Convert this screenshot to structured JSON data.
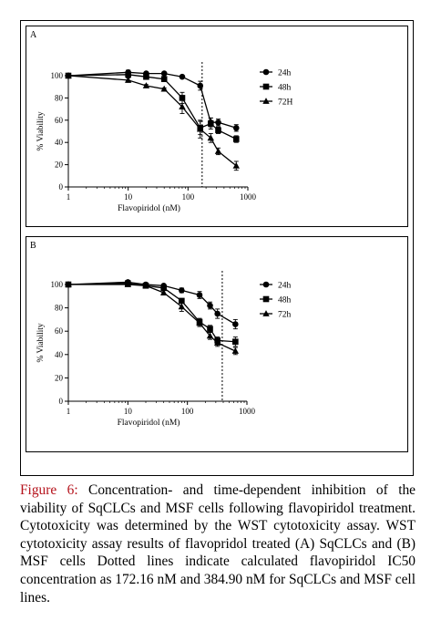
{
  "caption": {
    "label": "Figure 6:",
    "text": " Concentration- and time-dependent inhibition of the viability of SqCLCs and MSF cells following flavopiridol treatment. Cytotoxicity was determined by the WST cytotoxicity assay. WST cytotoxicity assay results of flavopridol treated (A) SqCLCs and (B) MSF cells Dotted lines indicate calculated flavopiridol IC50 concentration as 172.16 nM and 384.90 nM for SqCLCs and MSF cell lines."
  },
  "chart_data": [
    {
      "type": "line",
      "panel_label": "A",
      "xlabel": "Flavopiridol (nM)",
      "ylabel": "% Viability",
      "xscale": "log",
      "xlim": [
        1,
        1000
      ],
      "ylim": [
        0,
        100
      ],
      "xticks": [
        1,
        10,
        100,
        1000
      ],
      "xtick_labels": [
        "1",
        "10",
        "100",
        "1000"
      ],
      "yticks": [
        0,
        20,
        40,
        60,
        80,
        100
      ],
      "ytick_labels": [
        "0",
        "20",
        "40",
        "60",
        "80",
        "100"
      ],
      "ic50_line": 172.16,
      "legend_position": "top-right",
      "series": [
        {
          "name": "24h",
          "marker": "circle",
          "x": [
            1,
            10,
            20,
            40,
            80,
            160,
            240,
            320,
            640
          ],
          "y": [
            100,
            103,
            102,
            102,
            99,
            91,
            58,
            58,
            53
          ],
          "err": [
            0,
            2,
            1,
            1,
            1,
            4,
            4,
            3,
            3
          ]
        },
        {
          "name": "48h",
          "marker": "square",
          "x": [
            1,
            10,
            20,
            40,
            80,
            160,
            240,
            320,
            640
          ],
          "y": [
            100,
            101,
            99,
            97,
            80,
            53,
            57,
            51,
            43
          ],
          "err": [
            0,
            2,
            1,
            2,
            5,
            6,
            5,
            3,
            3
          ]
        },
        {
          "name": "72H",
          "marker": "triangle",
          "x": [
            1,
            10,
            20,
            40,
            80,
            160,
            240,
            320,
            640
          ],
          "y": [
            100,
            96,
            91,
            88,
            72,
            52,
            44,
            32,
            19
          ],
          "err": [
            0,
            2,
            1,
            1,
            6,
            8,
            4,
            3,
            4
          ]
        }
      ]
    },
    {
      "type": "line",
      "panel_label": "B",
      "xlabel": "Flavopiridol (nM)",
      "ylabel": "% Viability",
      "xscale": "log",
      "xlim": [
        1,
        1000
      ],
      "ylim": [
        0,
        100
      ],
      "xticks": [
        1,
        10,
        100,
        1000
      ],
      "xtick_labels": [
        "1",
        "10",
        "100",
        "1000"
      ],
      "yticks": [
        0,
        20,
        40,
        60,
        80,
        100
      ],
      "ytick_labels": [
        "0",
        "20",
        "40",
        "60",
        "80",
        "100"
      ],
      "ic50_line": 384.9,
      "legend_position": "top-right",
      "series": [
        {
          "name": "24h",
          "marker": "circle",
          "x": [
            1,
            10,
            20,
            40,
            80,
            160,
            240,
            320,
            640
          ],
          "y": [
            100,
            102,
            100,
            99,
            95,
            91,
            82,
            75,
            66
          ],
          "err": [
            0,
            1,
            1,
            1,
            2,
            3,
            3,
            4,
            4
          ]
        },
        {
          "name": "48h",
          "marker": "square",
          "x": [
            1,
            10,
            20,
            40,
            80,
            160,
            240,
            320,
            640
          ],
          "y": [
            100,
            101,
            99,
            97,
            86,
            68,
            62,
            52,
            51
          ],
          "err": [
            0,
            1,
            1,
            2,
            2,
            3,
            3,
            3,
            4
          ]
        },
        {
          "name": "72h",
          "marker": "triangle",
          "x": [
            1,
            10,
            20,
            40,
            80,
            160,
            240,
            320,
            640
          ],
          "y": [
            100,
            100,
            99,
            93,
            81,
            67,
            56,
            50,
            43
          ],
          "err": [
            0,
            1,
            1,
            2,
            4,
            3,
            3,
            3,
            3
          ]
        }
      ]
    }
  ]
}
